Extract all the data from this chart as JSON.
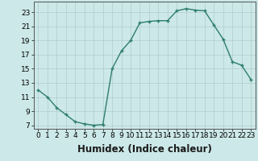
{
  "title": "",
  "xlabel": "Humidex (Indice chaleur)",
  "x_values": [
    0,
    1,
    2,
    3,
    4,
    5,
    6,
    7,
    8,
    9,
    10,
    11,
    12,
    13,
    14,
    15,
    16,
    17,
    18,
    19,
    20,
    21,
    22,
    23
  ],
  "y_values": [
    12,
    11,
    9.5,
    8.5,
    7.5,
    7.2,
    7.0,
    7.1,
    15.0,
    17.5,
    19.0,
    21.5,
    21.7,
    21.8,
    21.8,
    23.2,
    23.5,
    23.3,
    23.2,
    21.2,
    19.2,
    16.0,
    15.5,
    13.5
  ],
  "line_color": "#2e7d6e",
  "marker": "+",
  "bg_color": "#cce8e8",
  "grid_color": "#b0cccc",
  "ylim": [
    6.5,
    24.5
  ],
  "xlim": [
    -0.5,
    23.5
  ],
  "yticks": [
    7,
    9,
    11,
    13,
    15,
    17,
    19,
    21,
    23
  ],
  "xticks": [
    0,
    1,
    2,
    3,
    4,
    5,
    6,
    7,
    8,
    9,
    10,
    11,
    12,
    13,
    14,
    15,
    16,
    17,
    18,
    19,
    20,
    21,
    22,
    23
  ],
  "xtick_labels": [
    "0",
    "1",
    "2",
    "3",
    "4",
    "5",
    "6",
    "7",
    "8",
    "9",
    "10",
    "11",
    "12",
    "13",
    "14",
    "15",
    "16",
    "17",
    "18",
    "19",
    "20",
    "21",
    "22",
    "23"
  ],
  "tick_fontsize": 6.5,
  "xlabel_fontsize": 8.5,
  "markersize": 3.5,
  "linewidth": 1.0
}
